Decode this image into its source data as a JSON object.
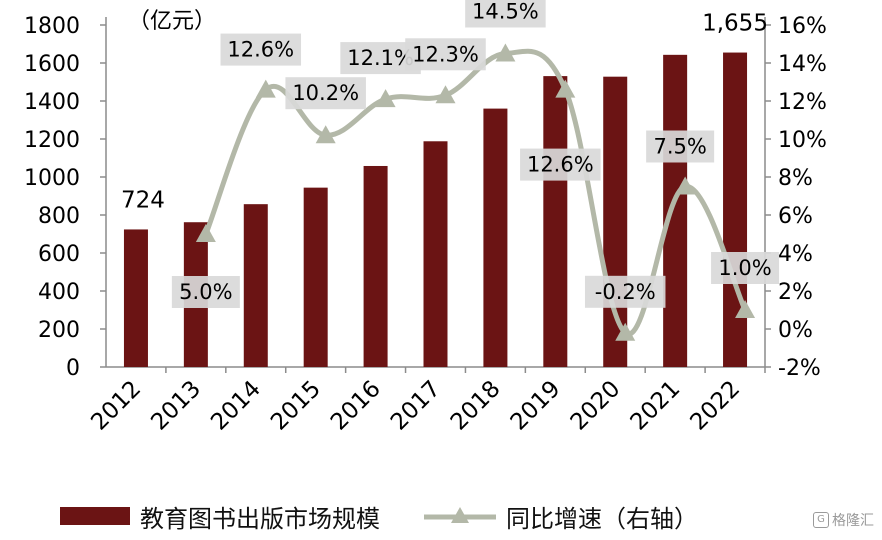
{
  "chart_data": {
    "type": "bar+line",
    "categories": [
      "2012",
      "2013",
      "2014",
      "2015",
      "2016",
      "2017",
      "2018",
      "2019",
      "2020",
      "2021",
      "2022"
    ],
    "series": [
      {
        "name": "教育图书出版市场规模",
        "type": "bar",
        "axis": "left",
        "values": [
          724,
          762,
          857,
          944,
          1058,
          1188,
          1360,
          1531,
          1528,
          1643,
          1655
        ],
        "color": "#6b1414"
      },
      {
        "name": "同比增速（右轴）",
        "type": "line",
        "axis": "right",
        "values": [
          null,
          5.0,
          12.6,
          10.2,
          12.1,
          12.3,
          14.5,
          12.6,
          -0.2,
          7.5,
          1.0
        ],
        "color": "#b3b8a8"
      }
    ],
    "bar_labels": [
      {
        "index": 0,
        "text": "724"
      },
      {
        "index": 10,
        "text": "1,655"
      }
    ],
    "line_labels": [
      "",
      "5.0%",
      "12.6%",
      "10.2%",
      "12.1%",
      "12.3%",
      "14.5%",
      "12.6%",
      "-0.2%",
      "7.5%",
      "1.0%"
    ],
    "left_axis": {
      "unit": "（亿元）",
      "ylim": [
        0,
        1800
      ],
      "ticks": [
        "0",
        "200",
        "400",
        "600",
        "800",
        "1000",
        "1200",
        "1400",
        "1600",
        "1800"
      ]
    },
    "right_axis": {
      "ylim": [
        -2,
        16
      ],
      "ticks": [
        "-2%",
        "0%",
        "2%",
        "4%",
        "6%",
        "8%",
        "10%",
        "12%",
        "14%",
        "16%"
      ]
    },
    "grid": false,
    "legend_position": "bottom"
  },
  "legend": {
    "bar_label": "教育图书出版市场规模",
    "line_label": "同比增速（右轴）"
  },
  "watermark": {
    "text": "格隆汇"
  }
}
